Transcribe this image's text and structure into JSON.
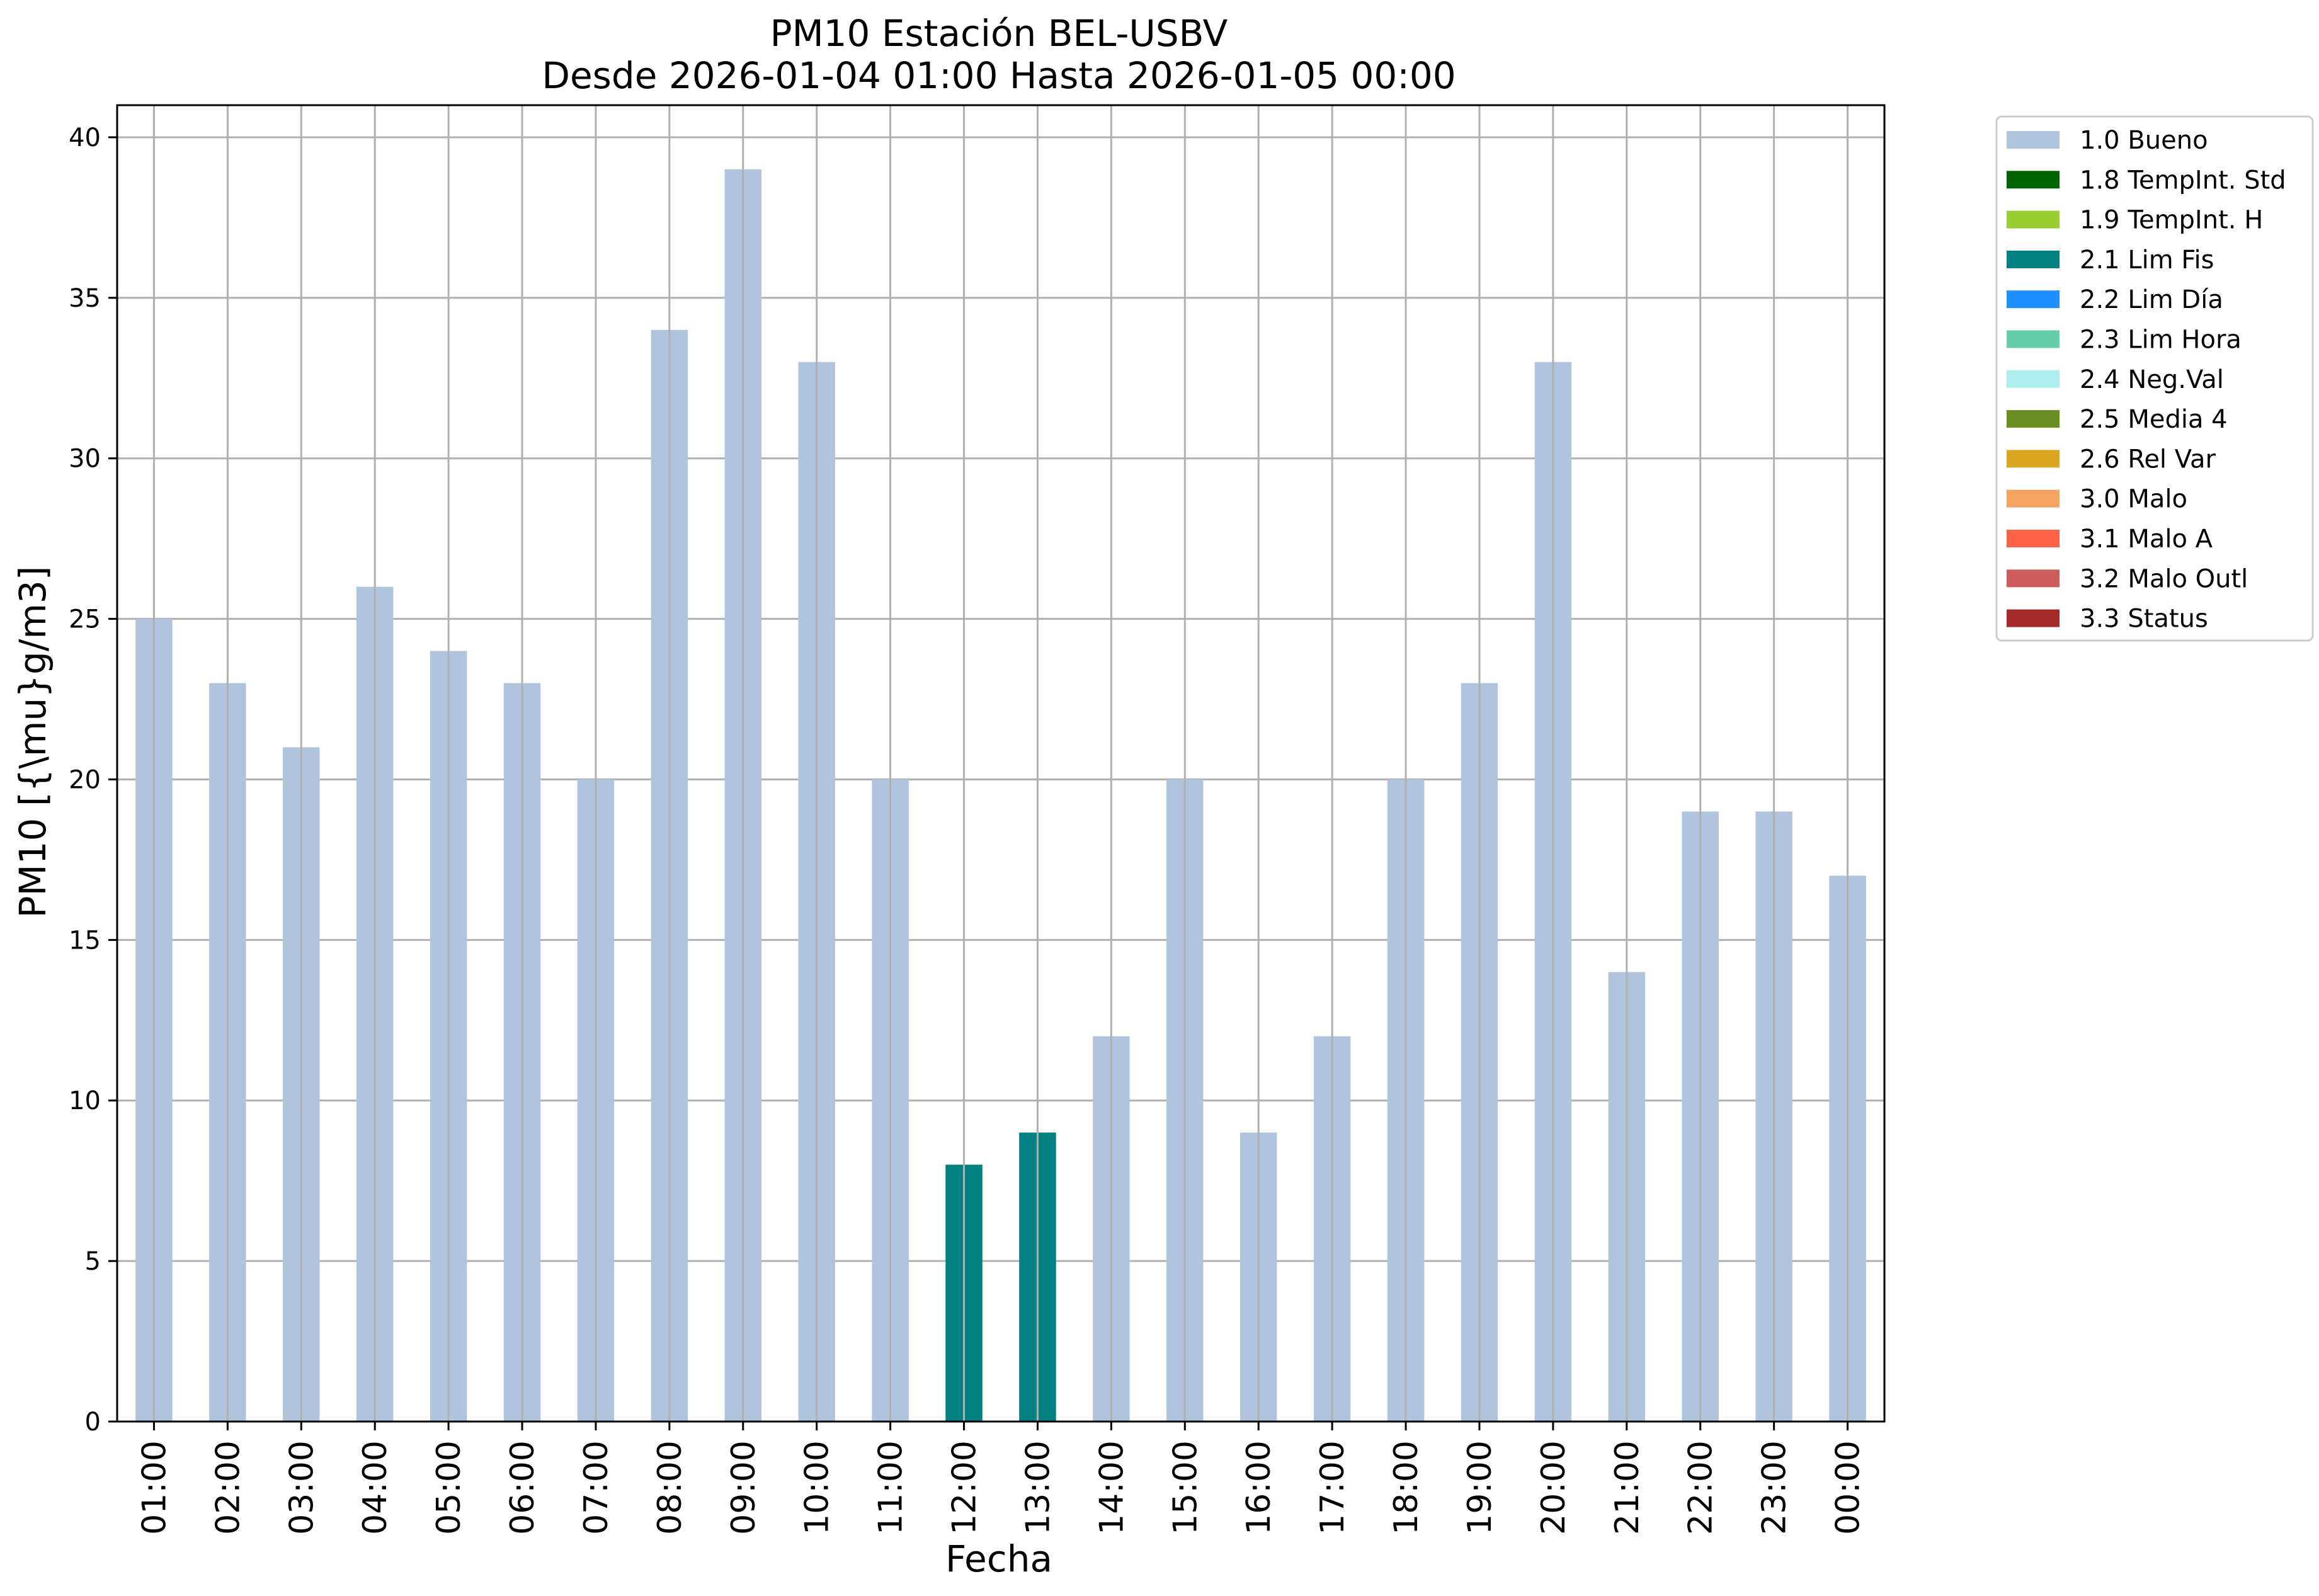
{
  "chart_data": {
    "type": "bar",
    "title": "PM10 Estación BEL-USBV",
    "subtitle": "Desde 2026-01-04 01:00 Hasta 2026-01-05 00:00",
    "xlabel": "Fecha",
    "ylabel": "PM10 [{\\mu}g/m3]",
    "ylim": [
      0,
      41
    ],
    "yticks": [
      0,
      5,
      10,
      15,
      20,
      25,
      30,
      35,
      40
    ],
    "grid": true,
    "legend_placement": "outside-top-right",
    "categories": [
      "01:00",
      "02:00",
      "03:00",
      "04:00",
      "05:00",
      "06:00",
      "07:00",
      "08:00",
      "09:00",
      "10:00",
      "11:00",
      "12:00",
      "13:00",
      "14:00",
      "15:00",
      "16:00",
      "17:00",
      "18:00",
      "19:00",
      "20:00",
      "21:00",
      "22:00",
      "23:00",
      "00:00"
    ],
    "values": [
      25,
      23,
      21,
      26,
      24,
      23,
      20,
      34,
      39,
      33,
      20,
      8,
      9,
      12,
      20,
      9,
      12,
      20,
      23,
      33,
      14,
      19,
      19,
      17
    ],
    "flags": [
      "1.0",
      "1.0",
      "1.0",
      "1.0",
      "1.0",
      "1.0",
      "1.0",
      "1.0",
      "1.0",
      "1.0",
      "1.0",
      "2.1",
      "2.1",
      "1.0",
      "1.0",
      "1.0",
      "1.0",
      "1.0",
      "1.0",
      "1.0",
      "1.0",
      "1.0",
      "1.0",
      "1.0"
    ],
    "legend": [
      {
        "code": "1.0",
        "label": "1.0 Bueno",
        "color": "#b0c4de"
      },
      {
        "code": "1.8",
        "label": "1.8 TempInt. Std",
        "color": "#006400"
      },
      {
        "code": "1.9",
        "label": "1.9 TempInt. H",
        "color": "#9acd32"
      },
      {
        "code": "2.1",
        "label": "2.1 Lim Fis",
        "color": "#008080"
      },
      {
        "code": "2.2",
        "label": "2.2 Lim Día",
        "color": "#1e90ff"
      },
      {
        "code": "2.3",
        "label": "2.3 Lim Hora",
        "color": "#66cdaa"
      },
      {
        "code": "2.4",
        "label": "2.4 Neg.Val",
        "color": "#afeeee"
      },
      {
        "code": "2.5",
        "label": "2.5 Media 4",
        "color": "#6b8e23"
      },
      {
        "code": "2.6",
        "label": "2.6 Rel Var",
        "color": "#daa520"
      },
      {
        "code": "3.0",
        "label": "3.0 Malo",
        "color": "#f4a460"
      },
      {
        "code": "3.1",
        "label": "3.1 Malo A",
        "color": "#ff6347"
      },
      {
        "code": "3.2",
        "label": "3.2 Malo Outl",
        "color": "#cd5c5c"
      },
      {
        "code": "3.3",
        "label": "3.3 Status",
        "color": "#a52a2a"
      }
    ]
  }
}
